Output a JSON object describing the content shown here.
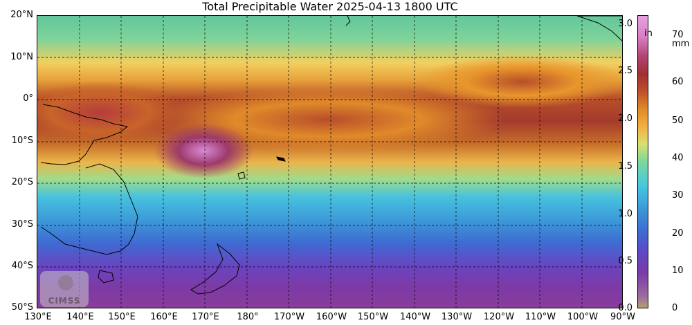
{
  "title": "Total Precipitable Water  2025-04-13 1800 UTC",
  "latitude_labels": [
    "20°N",
    "10°N",
    "0°",
    "10°S",
    "20°S",
    "30°S",
    "40°S",
    "50°S"
  ],
  "longitude_labels": [
    "130°E",
    "140°E",
    "150°E",
    "160°E",
    "170°E",
    "180°",
    "170°W",
    "160°W",
    "150°W",
    "140°W",
    "130°W",
    "120°W",
    "110°W",
    "100°W",
    "90°W"
  ],
  "colorbar": {
    "unit_left": "in",
    "unit_right": "mm",
    "ticks_in": [
      "0.0",
      "0.5",
      "1.0",
      "1.5",
      "2.0",
      "2.5",
      "3.0"
    ],
    "ticks_mm": [
      "0",
      "10",
      "20",
      "30",
      "40",
      "50",
      "60",
      "70"
    ],
    "min_mm": 0,
    "max_mm": 78
  },
  "logo_text": "CIMSS"
}
